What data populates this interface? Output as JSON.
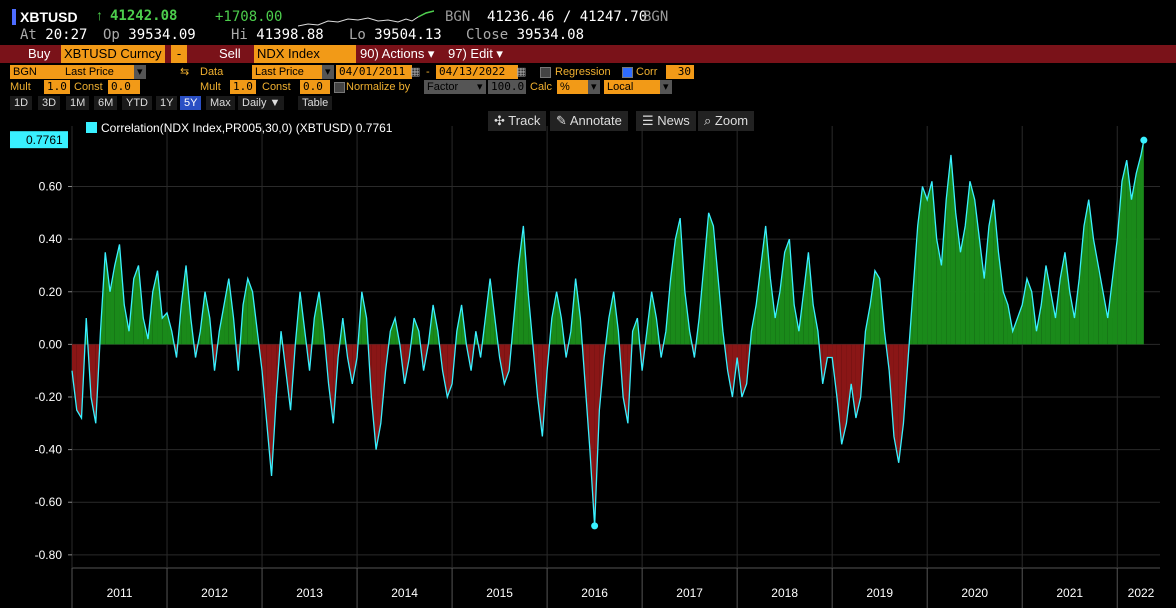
{
  "quote": {
    "ticker": "XBTUSD",
    "arrow": "↑",
    "last": "41242.08",
    "change": "+1708.00",
    "source1": "BGN",
    "bid_ask": "41236.46 / 41247.70",
    "source2": "BGN",
    "at_label": "At",
    "at_value": "20:27",
    "op_label": "Op",
    "op_value": "39534.09",
    "hi_label": "Hi",
    "hi_value": "41398.88",
    "lo_label": "Lo",
    "lo_value": "39504.13",
    "close_label": "Close",
    "close_value": "39534.08"
  },
  "actionbar": {
    "buy_label": "Buy",
    "buy_field": "XBTUSD Curncy",
    "dash": "-",
    "sell_label": "Sell",
    "sell_field": "NDX Index",
    "actions": "90) Actions ▾",
    "edit": "97) Edit ▾"
  },
  "settings1": {
    "src": "BGN",
    "price1": "Last Price",
    "data_label": "Data",
    "price2": "Last Price",
    "from": "04/01/2011",
    "sep": "-",
    "to": "04/13/2022",
    "regression": "Regression",
    "corr": "Corr",
    "corr_period": "30"
  },
  "settings2": {
    "mult_label": "Mult",
    "mult1": "1.0",
    "const_label": "Const",
    "const1": "0.0",
    "mult2_label": "Mult",
    "mult2": "1.0",
    "const2_label": "Const",
    "const2": "0.0",
    "normalize": "Normalize by",
    "factor": "Factor",
    "factor_val": "100.0",
    "calc_label": "Calc",
    "calc_val": "%",
    "local": "Local"
  },
  "ranges": [
    "1D",
    "3D",
    "1M",
    "6M",
    "YTD",
    "1Y",
    "5Y",
    "Max",
    "Daily ▼",
    "Table"
  ],
  "active_range": "5Y",
  "tools": {
    "track": "Track",
    "annotate": "Annotate",
    "news": "News",
    "zoom": "Zoom"
  },
  "colors": {
    "line": "#39f0ff",
    "pos": "#1a8a1a",
    "neg": "#8a1616",
    "grid": "#2a2a2a"
  },
  "chart_data": {
    "type": "line",
    "title": "",
    "legend": "Correlation(NDX Index,PR005,30,0) (XBTUSD) 0.7761",
    "last_value": "0.7761",
    "ylim": [
      -0.85,
      0.83
    ],
    "yticks": [
      "0.60",
      "0.40",
      "0.20",
      "0.00",
      "-0.20",
      "-0.40",
      "-0.60",
      "-0.80"
    ],
    "ytick_values": [
      0.6,
      0.4,
      0.2,
      0,
      -0.2,
      -0.4,
      -0.6,
      -0.8
    ],
    "xlim": [
      2011.0,
      2022.45
    ],
    "years": [
      "2011",
      "2012",
      "2013",
      "2014",
      "2015",
      "2016",
      "2017",
      "2018",
      "2019",
      "2020",
      "2021",
      "2022"
    ],
    "x": [
      2011.0,
      2011.05,
      2011.1,
      2011.15,
      2011.2,
      2011.25,
      2011.3,
      2011.35,
      2011.4,
      2011.45,
      2011.5,
      2011.55,
      2011.6,
      2011.65,
      2011.7,
      2011.75,
      2011.8,
      2011.85,
      2011.9,
      2011.95,
      2012.0,
      2012.05,
      2012.1,
      2012.15,
      2012.2,
      2012.25,
      2012.3,
      2012.35,
      2012.4,
      2012.45,
      2012.5,
      2012.55,
      2012.6,
      2012.65,
      2012.7,
      2012.75,
      2012.8,
      2012.85,
      2012.9,
      2012.95,
      2013.0,
      2013.05,
      2013.1,
      2013.15,
      2013.2,
      2013.25,
      2013.3,
      2013.35,
      2013.4,
      2013.45,
      2013.5,
      2013.55,
      2013.6,
      2013.65,
      2013.7,
      2013.75,
      2013.8,
      2013.85,
      2013.9,
      2013.95,
      2014.0,
      2014.05,
      2014.1,
      2014.15,
      2014.2,
      2014.25,
      2014.3,
      2014.35,
      2014.4,
      2014.45,
      2014.5,
      2014.55,
      2014.6,
      2014.65,
      2014.7,
      2014.75,
      2014.8,
      2014.85,
      2014.9,
      2014.95,
      2015.0,
      2015.05,
      2015.1,
      2015.15,
      2015.2,
      2015.25,
      2015.3,
      2015.35,
      2015.4,
      2015.45,
      2015.5,
      2015.55,
      2015.6,
      2015.65,
      2015.7,
      2015.75,
      2015.8,
      2015.85,
      2015.9,
      2015.95,
      2016.0,
      2016.05,
      2016.1,
      2016.15,
      2016.2,
      2016.25,
      2016.3,
      2016.35,
      2016.4,
      2016.45,
      2016.5,
      2016.55,
      2016.6,
      2016.65,
      2016.7,
      2016.75,
      2016.8,
      2016.85,
      2016.9,
      2016.95,
      2017.0,
      2017.05,
      2017.1,
      2017.15,
      2017.2,
      2017.25,
      2017.3,
      2017.35,
      2017.4,
      2017.45,
      2017.5,
      2017.55,
      2017.6,
      2017.65,
      2017.7,
      2017.75,
      2017.8,
      2017.85,
      2017.9,
      2017.95,
      2018.0,
      2018.05,
      2018.1,
      2018.15,
      2018.2,
      2018.25,
      2018.3,
      2018.35,
      2018.4,
      2018.45,
      2018.5,
      2018.55,
      2018.6,
      2018.65,
      2018.7,
      2018.75,
      2018.8,
      2018.85,
      2018.9,
      2018.95,
      2019.0,
      2019.05,
      2019.1,
      2019.15,
      2019.2,
      2019.25,
      2019.3,
      2019.35,
      2019.4,
      2019.45,
      2019.5,
      2019.55,
      2019.6,
      2019.65,
      2019.7,
      2019.75,
      2019.8,
      2019.85,
      2019.9,
      2019.95,
      2020.0,
      2020.05,
      2020.1,
      2020.15,
      2020.2,
      2020.25,
      2020.3,
      2020.35,
      2020.4,
      2020.45,
      2020.5,
      2020.55,
      2020.6,
      2020.65,
      2020.7,
      2020.75,
      2020.8,
      2020.85,
      2020.9,
      2020.95,
      2021.0,
      2021.05,
      2021.1,
      2021.15,
      2021.2,
      2021.25,
      2021.3,
      2021.35,
      2021.4,
      2021.45,
      2021.5,
      2021.55,
      2021.6,
      2021.65,
      2021.7,
      2021.75,
      2021.8,
      2021.85,
      2021.9,
      2021.95,
      2022.0,
      2022.05,
      2022.1,
      2022.15,
      2022.2,
      2022.25,
      2022.28
    ],
    "values": [
      -0.1,
      -0.25,
      -0.28,
      0.1,
      -0.2,
      -0.3,
      0.05,
      0.35,
      0.2,
      0.3,
      0.38,
      0.15,
      0.05,
      0.25,
      0.3,
      0.1,
      0.02,
      0.2,
      0.28,
      0.1,
      0.12,
      0.05,
      -0.05,
      0.15,
      0.3,
      0.1,
      -0.05,
      0.05,
      0.2,
      0.1,
      -0.1,
      0.05,
      0.15,
      0.25,
      0.1,
      -0.1,
      0.15,
      0.25,
      0.2,
      0.05,
      -0.1,
      -0.3,
      -0.5,
      -0.2,
      0.05,
      -0.1,
      -0.25,
      0.0,
      0.2,
      0.05,
      -0.1,
      0.1,
      0.2,
      0.05,
      -0.15,
      -0.3,
      -0.05,
      0.1,
      -0.05,
      -0.15,
      -0.05,
      0.2,
      0.1,
      -0.2,
      -0.4,
      -0.3,
      -0.1,
      0.05,
      0.1,
      0.0,
      -0.15,
      -0.05,
      0.1,
      0.05,
      -0.1,
      0.0,
      0.15,
      0.05,
      -0.1,
      -0.2,
      -0.15,
      0.05,
      0.15,
      0.0,
      -0.1,
      0.05,
      -0.05,
      0.1,
      0.25,
      0.1,
      -0.05,
      -0.15,
      -0.1,
      0.1,
      0.3,
      0.45,
      0.2,
      0.0,
      -0.2,
      -0.35,
      -0.1,
      0.1,
      0.2,
      0.1,
      -0.05,
      0.05,
      0.25,
      0.1,
      -0.15,
      -0.4,
      -0.69,
      -0.25,
      -0.05,
      0.1,
      0.2,
      0.05,
      -0.2,
      -0.3,
      0.05,
      0.1,
      -0.1,
      0.05,
      0.2,
      0.1,
      -0.05,
      0.05,
      0.25,
      0.4,
      0.48,
      0.2,
      0.05,
      -0.05,
      0.1,
      0.3,
      0.5,
      0.45,
      0.25,
      0.05,
      -0.1,
      -0.2,
      -0.05,
      -0.2,
      -0.15,
      0.05,
      0.15,
      0.3,
      0.45,
      0.25,
      0.1,
      0.2,
      0.35,
      0.4,
      0.15,
      0.05,
      0.2,
      0.35,
      0.15,
      0.05,
      -0.15,
      -0.05,
      -0.05,
      -0.2,
      -0.38,
      -0.3,
      -0.15,
      -0.28,
      -0.2,
      0.05,
      0.15,
      0.28,
      0.25,
      0.05,
      -0.1,
      -0.35,
      -0.45,
      -0.3,
      -0.05,
      0.2,
      0.45,
      0.6,
      0.55,
      0.62,
      0.4,
      0.3,
      0.55,
      0.72,
      0.5,
      0.35,
      0.45,
      0.62,
      0.55,
      0.4,
      0.25,
      0.45,
      0.55,
      0.35,
      0.2,
      0.15,
      0.05,
      0.1,
      0.15,
      0.25,
      0.2,
      0.05,
      0.15,
      0.3,
      0.2,
      0.1,
      0.25,
      0.35,
      0.2,
      0.1,
      0.25,
      0.45,
      0.55,
      0.4,
      0.3,
      0.2,
      0.1,
      0.25,
      0.4,
      0.62,
      0.7,
      0.55,
      0.65,
      0.72,
      0.7761
    ]
  }
}
